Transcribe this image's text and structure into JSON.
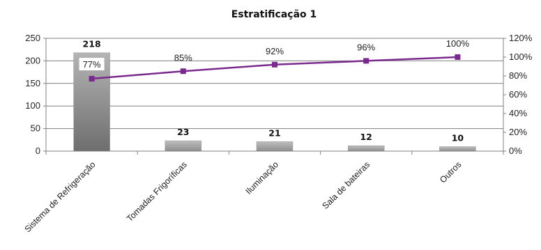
{
  "chart_data": {
    "type": "bar",
    "title": "Estratificação 1",
    "categories": [
      "Sistema de Refrigeração",
      "Tomadas Frigoríficas",
      "Iluminação",
      "Sala de bateiras",
      "Outros"
    ],
    "series": [
      {
        "type": "bar",
        "values": [
          218,
          23,
          21,
          12,
          10
        ],
        "color": "#8c8c8c"
      },
      {
        "type": "line",
        "axis": "right",
        "values": [
          77,
          85,
          92,
          96,
          100
        ],
        "labels": [
          "77%",
          "85%",
          "92%",
          "96%",
          "100%"
        ],
        "color": "#7a2a8c"
      }
    ],
    "y_left": {
      "ylim": [
        0,
        250
      ],
      "ticks": [
        "0",
        "50",
        "100",
        "150",
        "200",
        "250"
      ]
    },
    "y_right": {
      "ylim": [
        0,
        120
      ],
      "ticks": [
        "0%",
        "20%",
        "40%",
        "60%",
        "80%",
        "100%",
        "120%"
      ]
    },
    "grid": true,
    "legend": "none"
  }
}
